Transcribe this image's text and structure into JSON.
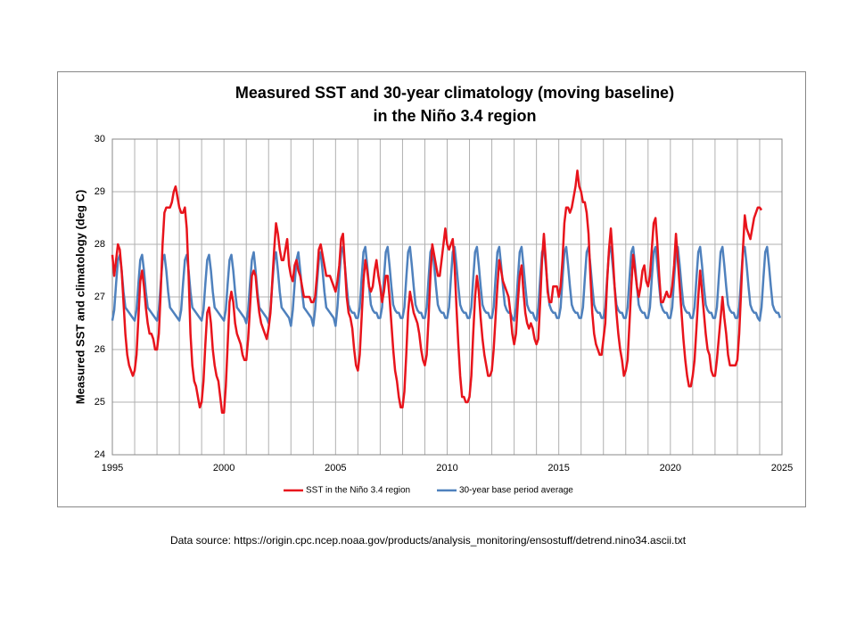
{
  "chart_data": {
    "type": "line",
    "title": [
      "Measured SST and 30-year climatology (moving baseline)",
      "in the Niño 3.4 region"
    ],
    "y_label": "Measured SST and climatology (deg C)",
    "source": "Data source:  https://origin.cpc.ncep.noaa.gov/products/analysis_monitoring/ensostuff/detrend.nino34.ascii.txt",
    "xlim": [
      1995,
      2025
    ],
    "xticks": [
      1995,
      2000,
      2005,
      2010,
      2015,
      2020,
      2025
    ],
    "x_minor_grid": [
      1996,
      1997,
      1998,
      1999,
      2001,
      2002,
      2003,
      2004,
      2006,
      2007,
      2008,
      2009,
      2011,
      2012,
      2013,
      2014,
      2016,
      2017,
      2018,
      2019,
      2021,
      2022,
      2023,
      2024
    ],
    "ylim": [
      24,
      30
    ],
    "yticks": [
      24,
      25,
      26,
      27,
      28,
      29,
      30
    ],
    "grid": true,
    "legend": "bottom",
    "x": [
      1995,
      1995.083,
      1995.167,
      1995.25,
      1995.333,
      1995.417,
      1995.5,
      1995.583,
      1995.667,
      1995.75,
      1995.833,
      1995.917,
      1996,
      1996.083,
      1996.167,
      1996.25,
      1996.333,
      1996.417,
      1996.5,
      1996.583,
      1996.667,
      1996.75,
      1996.833,
      1996.917,
      1997,
      1997.083,
      1997.167,
      1997.25,
      1997.333,
      1997.417,
      1997.5,
      1997.583,
      1997.667,
      1997.75,
      1997.833,
      1997.917,
      1998,
      1998.083,
      1998.167,
      1998.25,
      1998.333,
      1998.417,
      1998.5,
      1998.583,
      1998.667,
      1998.75,
      1998.833,
      1998.917,
      1999,
      1999.083,
      1999.167,
      1999.25,
      1999.333,
      1999.417,
      1999.5,
      1999.583,
      1999.667,
      1999.75,
      1999.833,
      1999.917,
      2000,
      2000.083,
      2000.167,
      2000.25,
      2000.333,
      2000.417,
      2000.5,
      2000.583,
      2000.667,
      2000.75,
      2000.833,
      2000.917,
      2001,
      2001.083,
      2001.167,
      2001.25,
      2001.333,
      2001.417,
      2001.5,
      2001.583,
      2001.667,
      2001.75,
      2001.833,
      2001.917,
      2002,
      2002.083,
      2002.167,
      2002.25,
      2002.333,
      2002.417,
      2002.5,
      2002.583,
      2002.667,
      2002.75,
      2002.833,
      2002.917,
      2003,
      2003.083,
      2003.167,
      2003.25,
      2003.333,
      2003.417,
      2003.5,
      2003.583,
      2003.667,
      2003.75,
      2003.833,
      2003.917,
      2004,
      2004.083,
      2004.167,
      2004.25,
      2004.333,
      2004.417,
      2004.5,
      2004.583,
      2004.667,
      2004.75,
      2004.833,
      2004.917,
      2005,
      2005.083,
      2005.167,
      2005.25,
      2005.333,
      2005.417,
      2005.5,
      2005.583,
      2005.667,
      2005.75,
      2005.833,
      2005.917,
      2006,
      2006.083,
      2006.167,
      2006.25,
      2006.333,
      2006.417,
      2006.5,
      2006.583,
      2006.667,
      2006.75,
      2006.833,
      2006.917,
      2007,
      2007.083,
      2007.167,
      2007.25,
      2007.333,
      2007.417,
      2007.5,
      2007.583,
      2007.667,
      2007.75,
      2007.833,
      2007.917,
      2008,
      2008.083,
      2008.167,
      2008.25,
      2008.333,
      2008.417,
      2008.5,
      2008.583,
      2008.667,
      2008.75,
      2008.833,
      2008.917,
      2009,
      2009.083,
      2009.167,
      2009.25,
      2009.333,
      2009.417,
      2009.5,
      2009.583,
      2009.667,
      2009.75,
      2009.833,
      2009.917,
      2010,
      2010.083,
      2010.167,
      2010.25,
      2010.333,
      2010.417,
      2010.5,
      2010.583,
      2010.667,
      2010.75,
      2010.833,
      2010.917,
      2011,
      2011.083,
      2011.167,
      2011.25,
      2011.333,
      2011.417,
      2011.5,
      2011.583,
      2011.667,
      2011.75,
      2011.833,
      2011.917,
      2012,
      2012.083,
      2012.167,
      2012.25,
      2012.333,
      2012.417,
      2012.5,
      2012.583,
      2012.667,
      2012.75,
      2012.833,
      2012.917,
      2013,
      2013.083,
      2013.167,
      2013.25,
      2013.333,
      2013.417,
      2013.5,
      2013.583,
      2013.667,
      2013.75,
      2013.833,
      2013.917,
      2014,
      2014.083,
      2014.167,
      2014.25,
      2014.333,
      2014.417,
      2014.5,
      2014.583,
      2014.667,
      2014.75,
      2014.833,
      2014.917,
      2015,
      2015.083,
      2015.167,
      2015.25,
      2015.333,
      2015.417,
      2015.5,
      2015.583,
      2015.667,
      2015.75,
      2015.833,
      2015.917,
      2016,
      2016.083,
      2016.167,
      2016.25,
      2016.333,
      2016.417,
      2016.5,
      2016.583,
      2016.667,
      2016.75,
      2016.833,
      2016.917,
      2017,
      2017.083,
      2017.167,
      2017.25,
      2017.333,
      2017.417,
      2017.5,
      2017.583,
      2017.667,
      2017.75,
      2017.833,
      2017.917,
      2018,
      2018.083,
      2018.167,
      2018.25,
      2018.333,
      2018.417,
      2018.5,
      2018.583,
      2018.667,
      2018.75,
      2018.833,
      2018.917,
      2019,
      2019.083,
      2019.167,
      2019.25,
      2019.333,
      2019.417,
      2019.5,
      2019.583,
      2019.667,
      2019.75,
      2019.833,
      2019.917,
      2020,
      2020.083,
      2020.167,
      2020.25,
      2020.333,
      2020.417,
      2020.5,
      2020.583,
      2020.667,
      2020.75,
      2020.833,
      2020.917,
      2021,
      2021.083,
      2021.167,
      2021.25,
      2021.333,
      2021.417,
      2021.5,
      2021.583,
      2021.667,
      2021.75,
      2021.833,
      2021.917,
      2022,
      2022.083,
      2022.167,
      2022.25,
      2022.333,
      2022.417,
      2022.5,
      2022.583,
      2022.667,
      2022.75,
      2022.833,
      2022.917,
      2023,
      2023.083,
      2023.167,
      2023.25,
      2023.333,
      2023.417,
      2023.5,
      2023.583,
      2023.667,
      2023.75,
      2023.833,
      2023.917,
      2024,
      2024.083,
      2024.167,
      2024.25,
      2024.333,
      2024.417,
      2024.5,
      2024.583,
      2024.667,
      2024.75,
      2024.833,
      2024.917
    ],
    "series": [
      {
        "name": "SST in the Niño 3.4 region",
        "color": "#e8141c",
        "values": [
          27.8,
          27.4,
          27.7,
          28.0,
          27.9,
          27.5,
          26.9,
          26.3,
          25.9,
          25.7,
          25.6,
          25.5,
          25.6,
          25.9,
          26.6,
          27.3,
          27.5,
          27.2,
          26.8,
          26.5,
          26.3,
          26.3,
          26.2,
          26.0,
          26.0,
          26.3,
          27.1,
          28.0,
          28.6,
          28.7,
          28.7,
          28.7,
          28.8,
          29.0,
          29.1,
          28.9,
          28.7,
          28.6,
          28.6,
          28.7,
          28.3,
          27.4,
          26.3,
          25.7,
          25.4,
          25.3,
          25.1,
          24.9,
          25.0,
          25.4,
          26.1,
          26.7,
          26.8,
          26.5,
          26.0,
          25.7,
          25.5,
          25.4,
          25.1,
          24.8,
          24.8,
          25.3,
          26.1,
          26.9,
          27.1,
          26.9,
          26.5,
          26.3,
          26.2,
          26.1,
          25.9,
          25.8,
          25.8,
          26.2,
          26.8,
          27.4,
          27.5,
          27.4,
          27.0,
          26.7,
          26.5,
          26.4,
          26.3,
          26.2,
          26.4,
          26.7,
          27.3,
          27.9,
          28.4,
          28.2,
          27.9,
          27.7,
          27.7,
          27.9,
          28.1,
          27.6,
          27.4,
          27.3,
          27.6,
          27.7,
          27.5,
          27.4,
          27.2,
          27.0,
          27.0,
          27.0,
          27.0,
          26.9,
          26.9,
          27.0,
          27.4,
          27.9,
          28.0,
          27.8,
          27.6,
          27.4,
          27.4,
          27.4,
          27.3,
          27.2,
          27.1,
          27.3,
          27.6,
          28.1,
          28.2,
          27.6,
          27.0,
          26.7,
          26.6,
          26.4,
          26.0,
          25.7,
          25.6,
          25.9,
          26.6,
          27.3,
          27.7,
          27.5,
          27.2,
          27.1,
          27.2,
          27.5,
          27.7,
          27.4,
          27.2,
          26.9,
          27.1,
          27.4,
          27.4,
          27.0,
          26.5,
          26.0,
          25.6,
          25.4,
          25.1,
          24.9,
          24.9,
          25.2,
          25.9,
          26.7,
          27.1,
          26.9,
          26.7,
          26.6,
          26.5,
          26.3,
          26.0,
          25.8,
          25.7,
          25.9,
          26.6,
          27.4,
          28.0,
          27.8,
          27.6,
          27.4,
          27.4,
          27.7,
          28.0,
          28.3,
          28.0,
          27.9,
          28.0,
          28.1,
          27.6,
          26.8,
          26.1,
          25.5,
          25.1,
          25.1,
          25.0,
          25.0,
          25.1,
          25.5,
          26.3,
          27.0,
          27.4,
          27.1,
          26.6,
          26.2,
          25.9,
          25.7,
          25.5,
          25.5,
          25.6,
          26.0,
          26.6,
          27.2,
          27.7,
          27.5,
          27.3,
          27.2,
          27.1,
          27.0,
          26.7,
          26.3,
          26.1,
          26.3,
          26.9,
          27.4,
          27.6,
          27.1,
          26.7,
          26.5,
          26.4,
          26.5,
          26.4,
          26.2,
          26.1,
          26.2,
          26.9,
          27.7,
          28.2,
          27.7,
          27.1,
          26.9,
          26.9,
          27.2,
          27.2,
          27.2,
          27.0,
          27.2,
          27.7,
          28.4,
          28.7,
          28.7,
          28.6,
          28.7,
          28.9,
          29.1,
          29.4,
          29.1,
          29.0,
          28.8,
          28.8,
          28.6,
          28.2,
          27.4,
          26.7,
          26.3,
          26.1,
          26.0,
          25.9,
          25.9,
          26.2,
          26.5,
          27.3,
          27.9,
          28.3,
          27.8,
          27.2,
          26.7,
          26.3,
          26.0,
          25.8,
          25.5,
          25.6,
          25.8,
          26.5,
          27.2,
          27.8,
          27.5,
          27.2,
          27.0,
          27.2,
          27.5,
          27.6,
          27.3,
          27.2,
          27.4,
          27.9,
          28.4,
          28.5,
          28.0,
          27.4,
          26.9,
          26.9,
          27.0,
          27.1,
          27.0,
          27.0,
          27.2,
          27.6,
          28.2,
          27.7,
          27.2,
          26.7,
          26.2,
          25.8,
          25.5,
          25.3,
          25.3,
          25.5,
          25.8,
          26.4,
          27.0,
          27.5,
          27.1,
          26.7,
          26.3,
          26.0,
          25.9,
          25.6,
          25.5,
          25.5,
          25.8,
          26.2,
          26.6,
          27.0,
          26.6,
          26.3,
          25.9,
          25.7,
          25.7,
          25.7,
          25.7,
          25.8,
          26.3,
          27.1,
          27.9,
          28.55,
          28.3,
          28.2,
          28.1,
          28.3,
          28.5,
          28.6,
          28.7,
          28.7,
          28.65,
          null,
          null,
          null,
          null,
          null,
          null,
          null,
          null,
          null,
          null
        ]
      },
      {
        "name": "30-year base period average",
        "color": "#4f81bd",
        "values": [
          26.55,
          26.75,
          27.25,
          27.7,
          27.8,
          27.5,
          27.1,
          26.8,
          26.75,
          26.7,
          26.65,
          26.6,
          26.55,
          26.75,
          27.25,
          27.7,
          27.8,
          27.5,
          27.1,
          26.8,
          26.75,
          26.7,
          26.65,
          26.6,
          26.55,
          26.75,
          27.25,
          27.7,
          27.8,
          27.5,
          27.1,
          26.8,
          26.75,
          26.7,
          26.65,
          26.6,
          26.55,
          26.75,
          27.25,
          27.7,
          27.8,
          27.5,
          27.1,
          26.8,
          26.75,
          26.7,
          26.65,
          26.6,
          26.55,
          26.75,
          27.25,
          27.7,
          27.8,
          27.5,
          27.1,
          26.8,
          26.75,
          26.7,
          26.65,
          26.6,
          26.55,
          26.75,
          27.25,
          27.7,
          27.8,
          27.5,
          27.1,
          26.8,
          26.75,
          26.7,
          26.65,
          26.6,
          26.5,
          26.75,
          27.25,
          27.7,
          27.85,
          27.5,
          27.1,
          26.8,
          26.75,
          26.7,
          26.65,
          26.6,
          26.5,
          26.75,
          27.25,
          27.7,
          27.85,
          27.5,
          27.1,
          26.8,
          26.75,
          26.7,
          26.65,
          26.6,
          26.45,
          26.75,
          27.25,
          27.7,
          27.85,
          27.5,
          27.1,
          26.8,
          26.75,
          26.7,
          26.65,
          26.6,
          26.45,
          26.75,
          27.25,
          27.7,
          27.85,
          27.5,
          27.1,
          26.8,
          26.75,
          26.7,
          26.65,
          26.6,
          26.45,
          26.8,
          27.35,
          27.85,
          27.95,
          27.6,
          27.2,
          26.85,
          26.75,
          26.7,
          26.7,
          26.6,
          26.6,
          26.8,
          27.35,
          27.85,
          27.95,
          27.6,
          27.2,
          26.85,
          26.75,
          26.7,
          26.7,
          26.6,
          26.6,
          26.8,
          27.35,
          27.85,
          27.95,
          27.6,
          27.2,
          26.85,
          26.75,
          26.7,
          26.7,
          26.6,
          26.6,
          26.8,
          27.35,
          27.85,
          27.95,
          27.6,
          27.2,
          26.85,
          26.75,
          26.7,
          26.7,
          26.6,
          26.6,
          26.8,
          27.35,
          27.85,
          27.95,
          27.6,
          27.2,
          26.85,
          26.75,
          26.7,
          26.7,
          26.6,
          26.6,
          26.8,
          27.35,
          27.85,
          27.95,
          27.6,
          27.2,
          26.85,
          26.75,
          26.7,
          26.7,
          26.6,
          26.6,
          26.8,
          27.35,
          27.85,
          27.95,
          27.6,
          27.2,
          26.85,
          26.75,
          26.7,
          26.7,
          26.6,
          26.6,
          26.8,
          27.35,
          27.85,
          27.95,
          27.6,
          27.2,
          26.85,
          26.75,
          26.7,
          26.7,
          26.6,
          26.55,
          26.8,
          27.35,
          27.85,
          27.95,
          27.6,
          27.2,
          26.85,
          26.75,
          26.7,
          26.7,
          26.6,
          26.55,
          26.8,
          27.35,
          27.85,
          27.95,
          27.6,
          27.2,
          26.85,
          26.75,
          26.7,
          26.7,
          26.6,
          26.6,
          26.8,
          27.35,
          27.85,
          27.95,
          27.6,
          27.2,
          26.85,
          26.75,
          26.7,
          26.7,
          26.6,
          26.6,
          26.8,
          27.35,
          27.85,
          27.95,
          27.6,
          27.2,
          26.85,
          26.75,
          26.7,
          26.7,
          26.6,
          26.6,
          26.8,
          27.35,
          27.85,
          27.95,
          27.6,
          27.2,
          26.85,
          26.75,
          26.7,
          26.7,
          26.6,
          26.6,
          26.8,
          27.35,
          27.85,
          27.95,
          27.6,
          27.2,
          26.85,
          26.75,
          26.7,
          26.7,
          26.6,
          26.6,
          26.8,
          27.35,
          27.85,
          27.95,
          27.6,
          27.2,
          26.85,
          26.75,
          26.7,
          26.7,
          26.6,
          26.6,
          26.8,
          27.35,
          27.85,
          27.95,
          27.6,
          27.2,
          26.85,
          26.75,
          26.7,
          26.7,
          26.6,
          26.6,
          26.8,
          27.35,
          27.85,
          27.95,
          27.6,
          27.2,
          26.85,
          26.75,
          26.7,
          26.7,
          26.6,
          26.6,
          26.8,
          27.35,
          27.85,
          27.95,
          27.6,
          27.2,
          26.85,
          26.75,
          26.7,
          26.7,
          26.6,
          26.6,
          26.8,
          27.35,
          27.85,
          27.95,
          27.6,
          27.2,
          26.85,
          26.75,
          26.7,
          26.7,
          26.6,
          26.55,
          26.8,
          27.35,
          27.85,
          27.95,
          27.6,
          27.2,
          26.85,
          26.75,
          26.7,
          26.7,
          26.6
        ]
      }
    ]
  }
}
